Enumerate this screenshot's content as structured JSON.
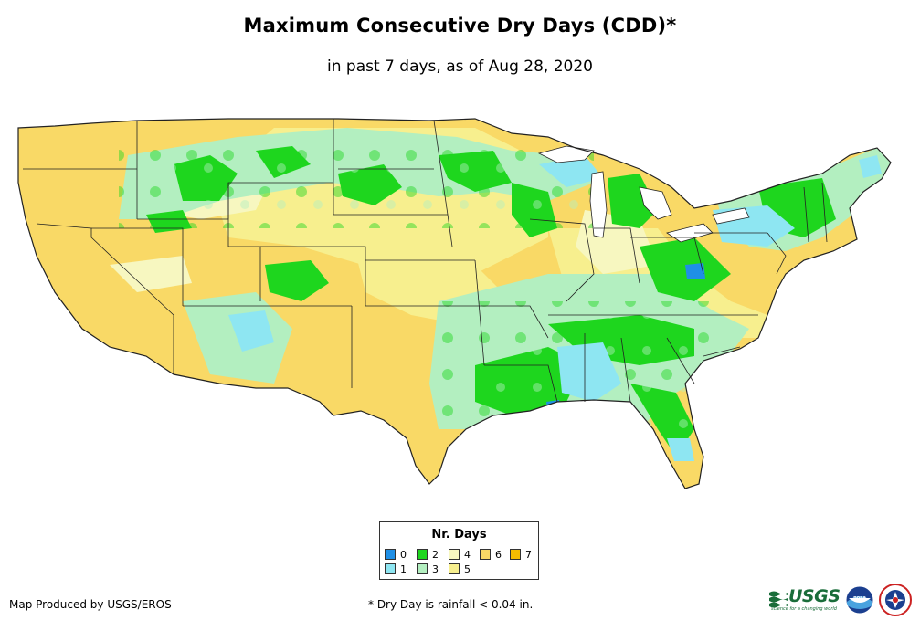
{
  "title": "Maximum Consecutive Dry Days (CDD)*",
  "subtitle": "in past 7 days, as of Aug 28, 2020",
  "legend": {
    "title": "Nr. Days",
    "items": [
      {
        "label": "0",
        "color": "#1f8fe6"
      },
      {
        "label": "1",
        "color": "#8ee6f2"
      },
      {
        "label": "2",
        "color": "#1ed61e"
      },
      {
        "label": "3",
        "color": "#b3efc0"
      },
      {
        "label": "4",
        "color": "#f7f7c0"
      },
      {
        "label": "5",
        "color": "#f7ef8e"
      },
      {
        "label": "6",
        "color": "#f9d966"
      },
      {
        "label": "7",
        "color": "#f5bc00"
      }
    ]
  },
  "credit": "Map Produced by USGS/EROS",
  "footnote": "* Dry Day is rainfall < 0.04 in.",
  "logos": {
    "usgs": "USGS",
    "usgs_tagline": "science for a changing world",
    "noaa": "noaa"
  },
  "colors": {
    "water": "#ffffff",
    "border": "#222222"
  }
}
